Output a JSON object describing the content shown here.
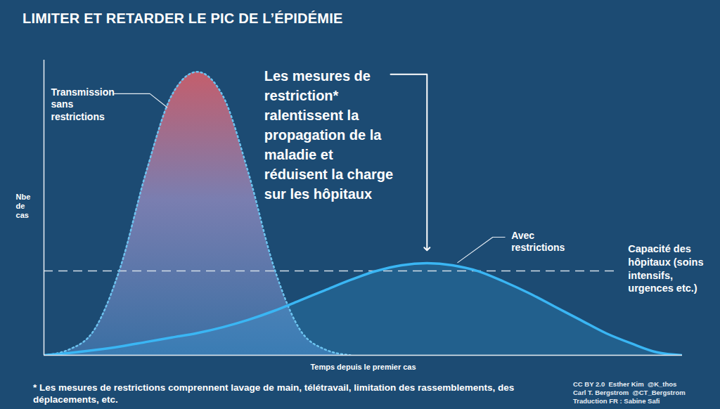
{
  "chart_data": {
    "type": "area",
    "title": "LIMITER ET RETARDER LE PIC DE L’ÉPIDÉMIE",
    "x_label": "Temps depuis le premier cas",
    "y_label": "Nbe\nde\ncas",
    "x": [
      0,
      4,
      8,
      12,
      16,
      20,
      24,
      28,
      32,
      36,
      40,
      44,
      48,
      52,
      56,
      60,
      64,
      68,
      72,
      76,
      80,
      84,
      88,
      92,
      96,
      100
    ],
    "series": [
      {
        "name": "Transmission\nsans\nrestrictions",
        "color": "#6cc4f0",
        "line_style": "dotted",
        "values": [
          0,
          2,
          9,
          30,
          62,
          88,
          96,
          88,
          62,
          30,
          9,
          2,
          0,
          null,
          null,
          null,
          null,
          null,
          null,
          null,
          null,
          null,
          null,
          null,
          null,
          null
        ]
      },
      {
        "name": "Avec\nrestrictions",
        "color": "#3ab6f4",
        "line_style": "solid",
        "values": [
          0,
          0.8,
          1.8,
          3,
          4.5,
          6,
          7.5,
          9.5,
          12,
          15,
          18.5,
          22,
          25.5,
          28.5,
          30.5,
          31.2,
          30.5,
          28.5,
          25,
          21,
          16.5,
          12,
          7.5,
          4,
          1,
          0
        ]
      }
    ],
    "reference_line": {
      "label": "Capacité des\nhôpitaux (soins\nintensifs,\nurgences etc.)",
      "value": 28.6,
      "line_style": "dashed"
    },
    "annotation": "Les mesures de\nrestriction*\nralentissent la\npropagation de la\nmaladie et\nréduisent la charge\nsur les hôpitaux",
    "footnote": "* Les mesures de restrictions comprennent lavage de main, télétravail, limitation des rassemblements, des déplacements, etc.",
    "credits": [
      "CC BY 2.0  Esther Kim  @K_thos",
      "Carl T. Bergstrom  @CT_Bergstrom",
      "Traduction FR : Sabine Safi"
    ],
    "xlim": [
      0,
      100
    ],
    "ylim": [
      0,
      100
    ],
    "xticks": [],
    "yticks": [],
    "tick_labels": false,
    "grid": false
  }
}
